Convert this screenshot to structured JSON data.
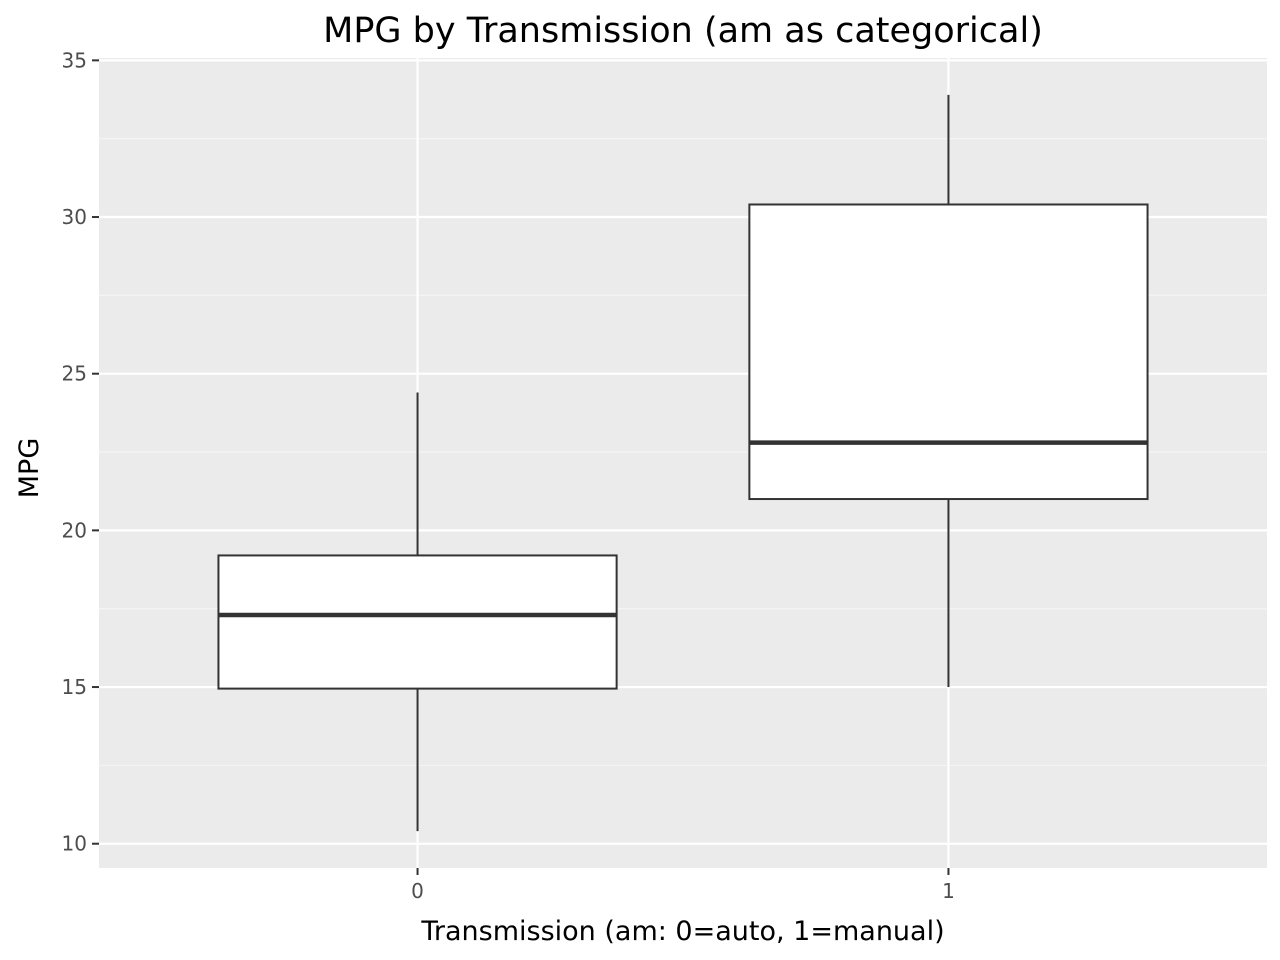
{
  "chart_data": {
    "type": "box",
    "title": "MPG by Transmission (am as categorical)",
    "xlabel": "Transmission (am: 0=auto, 1=manual)",
    "ylabel": "MPG",
    "categories": [
      "0",
      "1"
    ],
    "boxes": [
      {
        "category": "0",
        "whisker_low": 10.4,
        "q1": 14.95,
        "median": 17.3,
        "q3": 19.2,
        "whisker_high": 24.4
      },
      {
        "category": "1",
        "whisker_low": 15.0,
        "q1": 21.0,
        "median": 22.8,
        "q3": 30.4,
        "whisker_high": 33.9
      }
    ],
    "yticks": [
      "10",
      "15",
      "20",
      "25",
      "30",
      "35"
    ],
    "ylim": [
      9.225,
      35.075
    ],
    "grid": true,
    "legend": "none"
  },
  "colors": {
    "panel_background": "#ebebeb",
    "grid_major": "#ffffff",
    "grid_minor": "#f5f5f5",
    "box_fill": "#ffffff",
    "box_stroke": "#333333",
    "median_stroke": "#333333",
    "tick_text": "#4d4d4d",
    "tick_mark": "#333333"
  }
}
